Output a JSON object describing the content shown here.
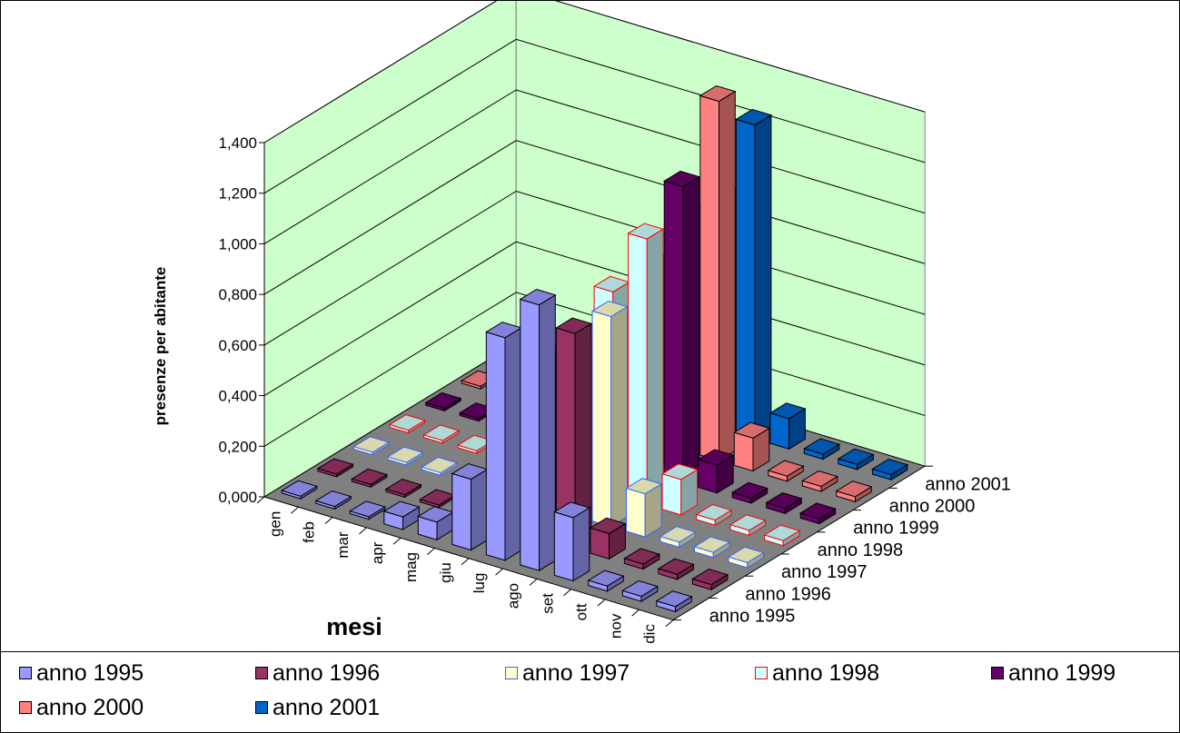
{
  "chart_data": {
    "type": "bar",
    "ylabel": "presenze per abitante",
    "xlabel": "mesi",
    "yticks": [
      "0,000",
      "0,200",
      "0,400",
      "0,600",
      "0,800",
      "1,000",
      "1,200",
      "1,400"
    ],
    "ylim": [
      0,
      1.4
    ],
    "categories": [
      "gen",
      "feb",
      "mar",
      "apr",
      "mag",
      "giu",
      "lug",
      "ago",
      "set",
      "ott",
      "nov",
      "dic"
    ],
    "series": [
      {
        "name": "anno 1995",
        "color": "#9999ff",
        "values": [
          0.01,
          0.01,
          0.01,
          0.05,
          0.07,
          0.28,
          0.88,
          1.05,
          0.25,
          0.02,
          0.02,
          0.02
        ]
      },
      {
        "name": "anno 1996",
        "color": "#993366",
        "values": [
          0.01,
          0.01,
          0.01,
          0.01,
          0.02,
          0.13,
          0.72,
          0.85,
          0.1,
          0.02,
          0.02,
          0.02
        ]
      },
      {
        "name": "anno 1997",
        "color": "#ffffcc",
        "stroke": "#3366ff",
        "values": [
          0.01,
          0.01,
          0.01,
          0.01,
          0.02,
          0.15,
          0.66,
          0.83,
          0.17,
          0.02,
          0.02,
          0.02
        ]
      },
      {
        "name": "anno 1998",
        "color": "#ccffff",
        "stroke": "#ff0000",
        "values": [
          0.01,
          0.01,
          0.01,
          0.01,
          0.02,
          0.16,
          0.8,
          1.05,
          0.14,
          0.02,
          0.02,
          0.02
        ]
      },
      {
        "name": "anno 1999",
        "color": "#660066",
        "values": [
          0.01,
          0.01,
          0.01,
          0.01,
          0.02,
          0.19,
          0.82,
          1.17,
          0.11,
          0.02,
          0.02,
          0.02
        ]
      },
      {
        "name": "anno 2000",
        "color": "#ff8080",
        "values": [
          0.01,
          0.01,
          0.01,
          0.01,
          0.02,
          0.18,
          0.93,
          1.42,
          0.13,
          0.02,
          0.02,
          0.02
        ]
      },
      {
        "name": "anno 2001",
        "color": "#0066cc",
        "values": [
          0.01,
          0.01,
          0.01,
          0.01,
          0.03,
          0.2,
          0.91,
          1.24,
          0.12,
          0.02,
          0.02,
          0.02
        ]
      }
    ],
    "legend_position": "bottom",
    "grid": true,
    "wall_color": "#ccffcc",
    "floor_color": "#808080"
  }
}
